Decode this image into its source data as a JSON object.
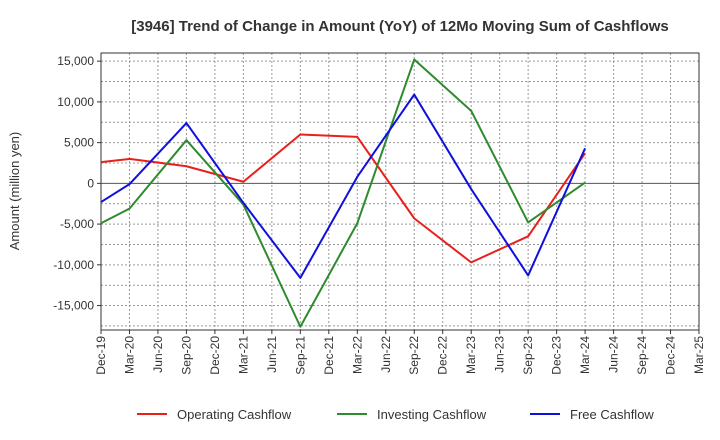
{
  "chart_data": {
    "type": "line",
    "title": "[3946]  Trend of Change in Amount (YoY) of 12Mo Moving Sum of Cashflows",
    "xlabel": "",
    "ylabel": "Amount (million yen)",
    "ylim": [
      -18000,
      16000
    ],
    "yticks": [
      15000,
      10000,
      5000,
      0,
      -5000,
      -10000,
      -15000
    ],
    "ytick_labels": [
      "15,000",
      "10,000",
      "5,000",
      "0",
      "-5,000",
      "-10,000",
      "-15,000"
    ],
    "categories": [
      "Dec-19",
      "Mar-20",
      "Jun-20",
      "Sep-20",
      "Dec-20",
      "Mar-21",
      "Jun-21",
      "Sep-21",
      "Dec-21",
      "Mar-22",
      "Jun-22",
      "Sep-22",
      "Dec-22",
      "Mar-23",
      "Jun-23",
      "Sep-23",
      "Dec-23",
      "Mar-24",
      "Jun-24",
      "Sep-24",
      "Dec-24",
      "Mar-25"
    ],
    "series": [
      {
        "name": "Operating Cashflow",
        "color": "#e8201c",
        "values": [
          2600,
          3000,
          null,
          2100,
          null,
          200,
          null,
          6000,
          null,
          5700,
          null,
          -4300,
          null,
          -9700,
          null,
          -6500,
          null,
          3700,
          null,
          null,
          null,
          null
        ]
      },
      {
        "name": "Investing Cashflow",
        "color": "#2e8b2e",
        "values": [
          -4900,
          -3100,
          null,
          5300,
          null,
          -2600,
          null,
          -17600,
          null,
          -4900,
          null,
          15200,
          null,
          8900,
          null,
          -4800,
          null,
          100,
          null,
          null,
          null,
          null
        ]
      },
      {
        "name": "Free Cashflow",
        "color": "#1010dd",
        "values": [
          -2300,
          -100,
          null,
          7400,
          null,
          -2400,
          null,
          -11600,
          null,
          800,
          null,
          10900,
          null,
          -700,
          null,
          -11300,
          null,
          4300,
          null,
          null,
          null,
          null
        ]
      }
    ],
    "grid": true,
    "legend_position": "bottom"
  }
}
